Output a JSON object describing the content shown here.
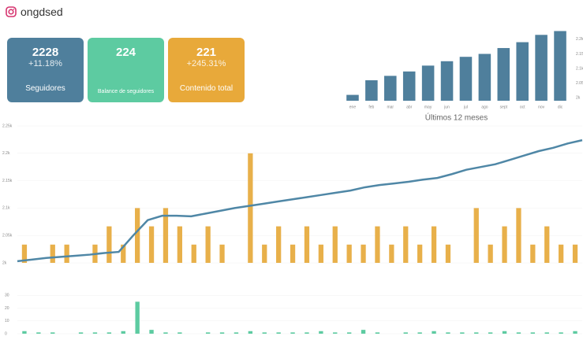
{
  "profile": {
    "handle": "ongdsed"
  },
  "cards": [
    {
      "value": "2228",
      "change": "+11.18%",
      "label": "Seguidores",
      "color": "#4f7f9c"
    },
    {
      "value": "224",
      "label": "Balance de seguidores",
      "color": "#5dcba1"
    },
    {
      "value": "221",
      "change": "+245.31%",
      "label": "Contenido total",
      "color": "#e8a93a"
    }
  ],
  "chart_data": [
    {
      "type": "bar",
      "title": "Últimos 12 meses",
      "categories": [
        "ene",
        "feb",
        "mar",
        "abr",
        "may",
        "jun",
        "jul",
        "ago",
        "sept",
        "oct",
        "nov",
        "dic"
      ],
      "values": [
        2010,
        2060,
        2075,
        2090,
        2110,
        2125,
        2140,
        2150,
        2170,
        2190,
        2215,
        2228
      ],
      "color": "#4f7f9c",
      "ylim": [
        1990,
        2240
      ],
      "yticks": [
        {
          "value": 2000,
          "label": "2k"
        },
        {
          "value": 2050,
          "label": "2.05k"
        },
        {
          "value": 2100,
          "label": "2.1k"
        },
        {
          "value": 2150,
          "label": "2.15k"
        },
        {
          "value": 2200,
          "label": "2.2k"
        }
      ]
    },
    {
      "type": "combo",
      "series": [
        {
          "type": "bar",
          "axis": "y2",
          "color": "#e8b04a",
          "values": [
            1,
            0,
            1,
            1,
            0,
            1,
            2,
            1,
            3,
            2,
            3,
            2,
            1,
            2,
            1,
            0,
            6,
            1,
            2,
            1,
            2,
            1,
            2,
            1,
            1,
            2,
            1,
            2,
            1,
            2,
            1,
            0,
            3,
            1,
            2,
            3,
            1,
            2,
            1,
            1
          ]
        },
        {
          "type": "line",
          "color": "#4f87a6",
          "values": [
            2003,
            2006,
            2009,
            2011,
            2013,
            2015,
            2018,
            2020,
            2050,
            2078,
            2086,
            2086,
            2085,
            2090,
            2095,
            2100,
            2104,
            2108,
            2112,
            2116,
            2120,
            2124,
            2128,
            2132,
            2138,
            2142,
            2145,
            2148,
            2152,
            2155,
            2162,
            2170,
            2175,
            2180,
            2188,
            2196,
            2204,
            2210,
            2218,
            2224
          ]
        }
      ],
      "ylim": [
        2000,
        2250
      ],
      "yticks": [
        {
          "value": 2000,
          "label": "2k"
        },
        {
          "value": 2050,
          "label": "2.05k"
        },
        {
          "value": 2100,
          "label": "2.1k"
        },
        {
          "value": 2150,
          "label": "2.15k"
        },
        {
          "value": 2200,
          "label": "2.2k"
        },
        {
          "value": 2250,
          "label": "2.25k"
        }
      ],
      "y2lim": [
        0,
        7.5
      ]
    },
    {
      "type": "bar",
      "values": [
        2,
        1,
        1,
        0,
        1,
        1,
        1,
        2,
        25,
        3,
        1,
        1,
        0,
        1,
        1,
        1,
        2,
        1,
        1,
        1,
        1,
        2,
        1,
        1,
        3,
        1,
        0,
        1,
        1,
        2,
        1,
        1,
        1,
        1,
        2,
        1,
        1,
        1,
        1,
        2
      ],
      "color": "#5dcba1",
      "ylim": [
        0,
        32
      ],
      "yticks": [
        0,
        10,
        20,
        30
      ]
    }
  ]
}
